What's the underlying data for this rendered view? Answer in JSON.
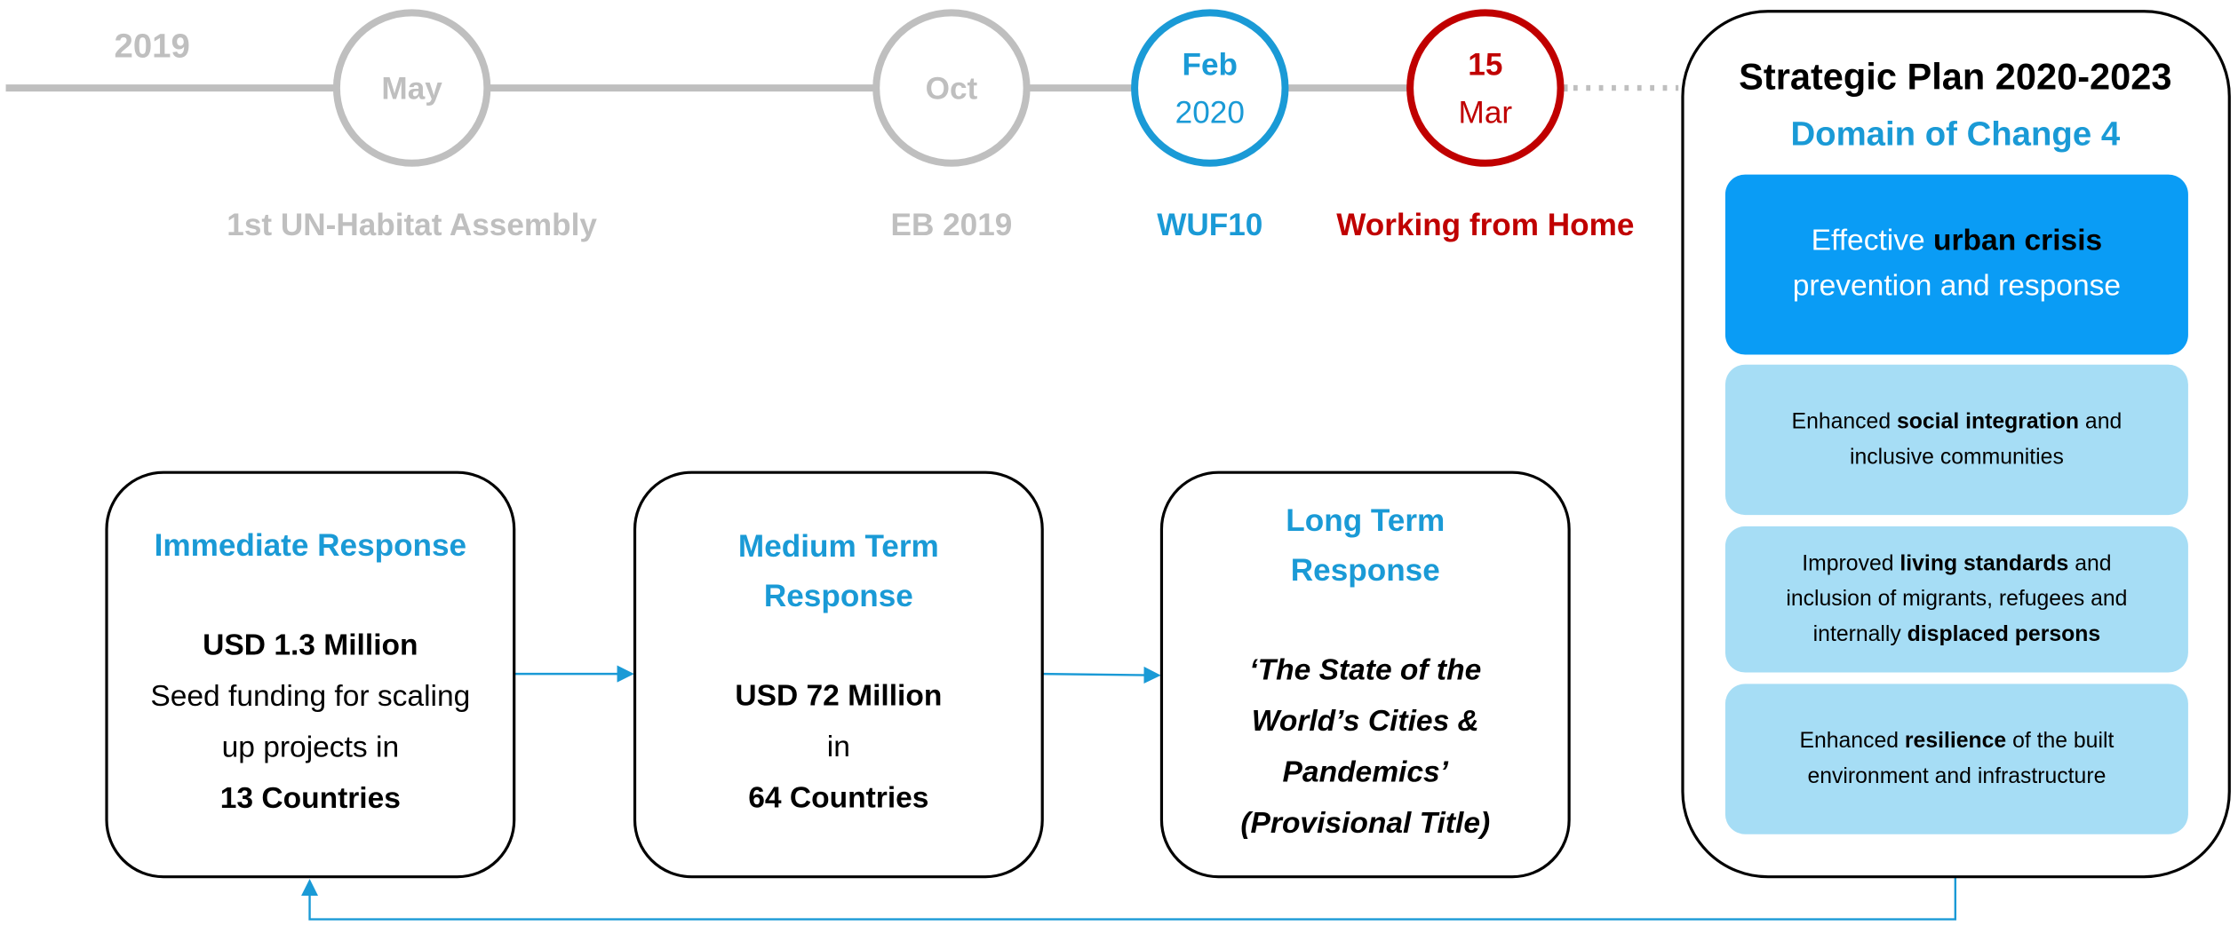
{
  "timeline": {
    "year": "2019",
    "events": [
      {
        "lines": [
          "May"
        ],
        "label": "1st UN-Habitat Assembly",
        "color": "#bfbfbf"
      },
      {
        "lines": [
          "Oct"
        ],
        "label": "EB 2019",
        "color": "#bfbfbf"
      },
      {
        "lines": [
          "Feb",
          "2020"
        ],
        "label": "WUF10",
        "color": "#1a9ad6"
      },
      {
        "lines": [
          "15",
          "Mar"
        ],
        "label": "Working from Home",
        "color": "#c00000"
      }
    ]
  },
  "responses": [
    {
      "title": [
        "Immediate Response"
      ],
      "body": [
        {
          "text": "USD 1.3 Million",
          "bold": true
        },
        {
          "text": "Seed funding for scaling"
        },
        {
          "text": "up projects in"
        },
        {
          "text": "13 Countries",
          "bold": true
        }
      ]
    },
    {
      "title": [
        "Medium Term",
        "Response"
      ],
      "body": [
        {
          "text": "USD 72 Million",
          "bold": true
        },
        {
          "text": "in"
        },
        {
          "text": "64 Countries",
          "bold": true
        }
      ]
    },
    {
      "title": [
        "Long Term",
        "Response"
      ],
      "body": [
        {
          "text": "‘The State of the",
          "bold": true,
          "italic": true
        },
        {
          "text": "World’s Cities &",
          "bold": true,
          "italic": true
        },
        {
          "text": "Pandemics’",
          "bold": true,
          "italic": true
        },
        {
          "text": "(Provisional Title)",
          "bold": true,
          "italic": true
        }
      ]
    }
  ],
  "plan": {
    "title": "Strategic Plan 2020-2023",
    "subtitle": "Domain of Change 4",
    "domains": [
      {
        "lines": [
          [
            {
              "text": "Effective "
            },
            {
              "text": "urban crisis",
              "bold": true
            }
          ],
          [
            {
              "text": "prevention and response"
            }
          ]
        ]
      },
      {
        "lines": [
          [
            {
              "text": "Enhanced "
            },
            {
              "text": "social integration",
              "bold": true
            },
            {
              "text": " and"
            }
          ],
          [
            {
              "text": "inclusive communities"
            }
          ]
        ]
      },
      {
        "lines": [
          [
            {
              "text": "Improved "
            },
            {
              "text": "living standards",
              "bold": true
            },
            {
              "text": " and"
            }
          ],
          [
            {
              "text": "inclusion of migrants, refugees and"
            }
          ],
          [
            {
              "text": "internally "
            },
            {
              "text": "displaced persons",
              "bold": true
            }
          ]
        ]
      },
      {
        "lines": [
          [
            {
              "text": "Enhanced "
            },
            {
              "text": "resilience",
              "bold": true
            },
            {
              "text": " of the built"
            }
          ],
          [
            {
              "text": "environment and infrastructure"
            }
          ]
        ]
      }
    ]
  }
}
